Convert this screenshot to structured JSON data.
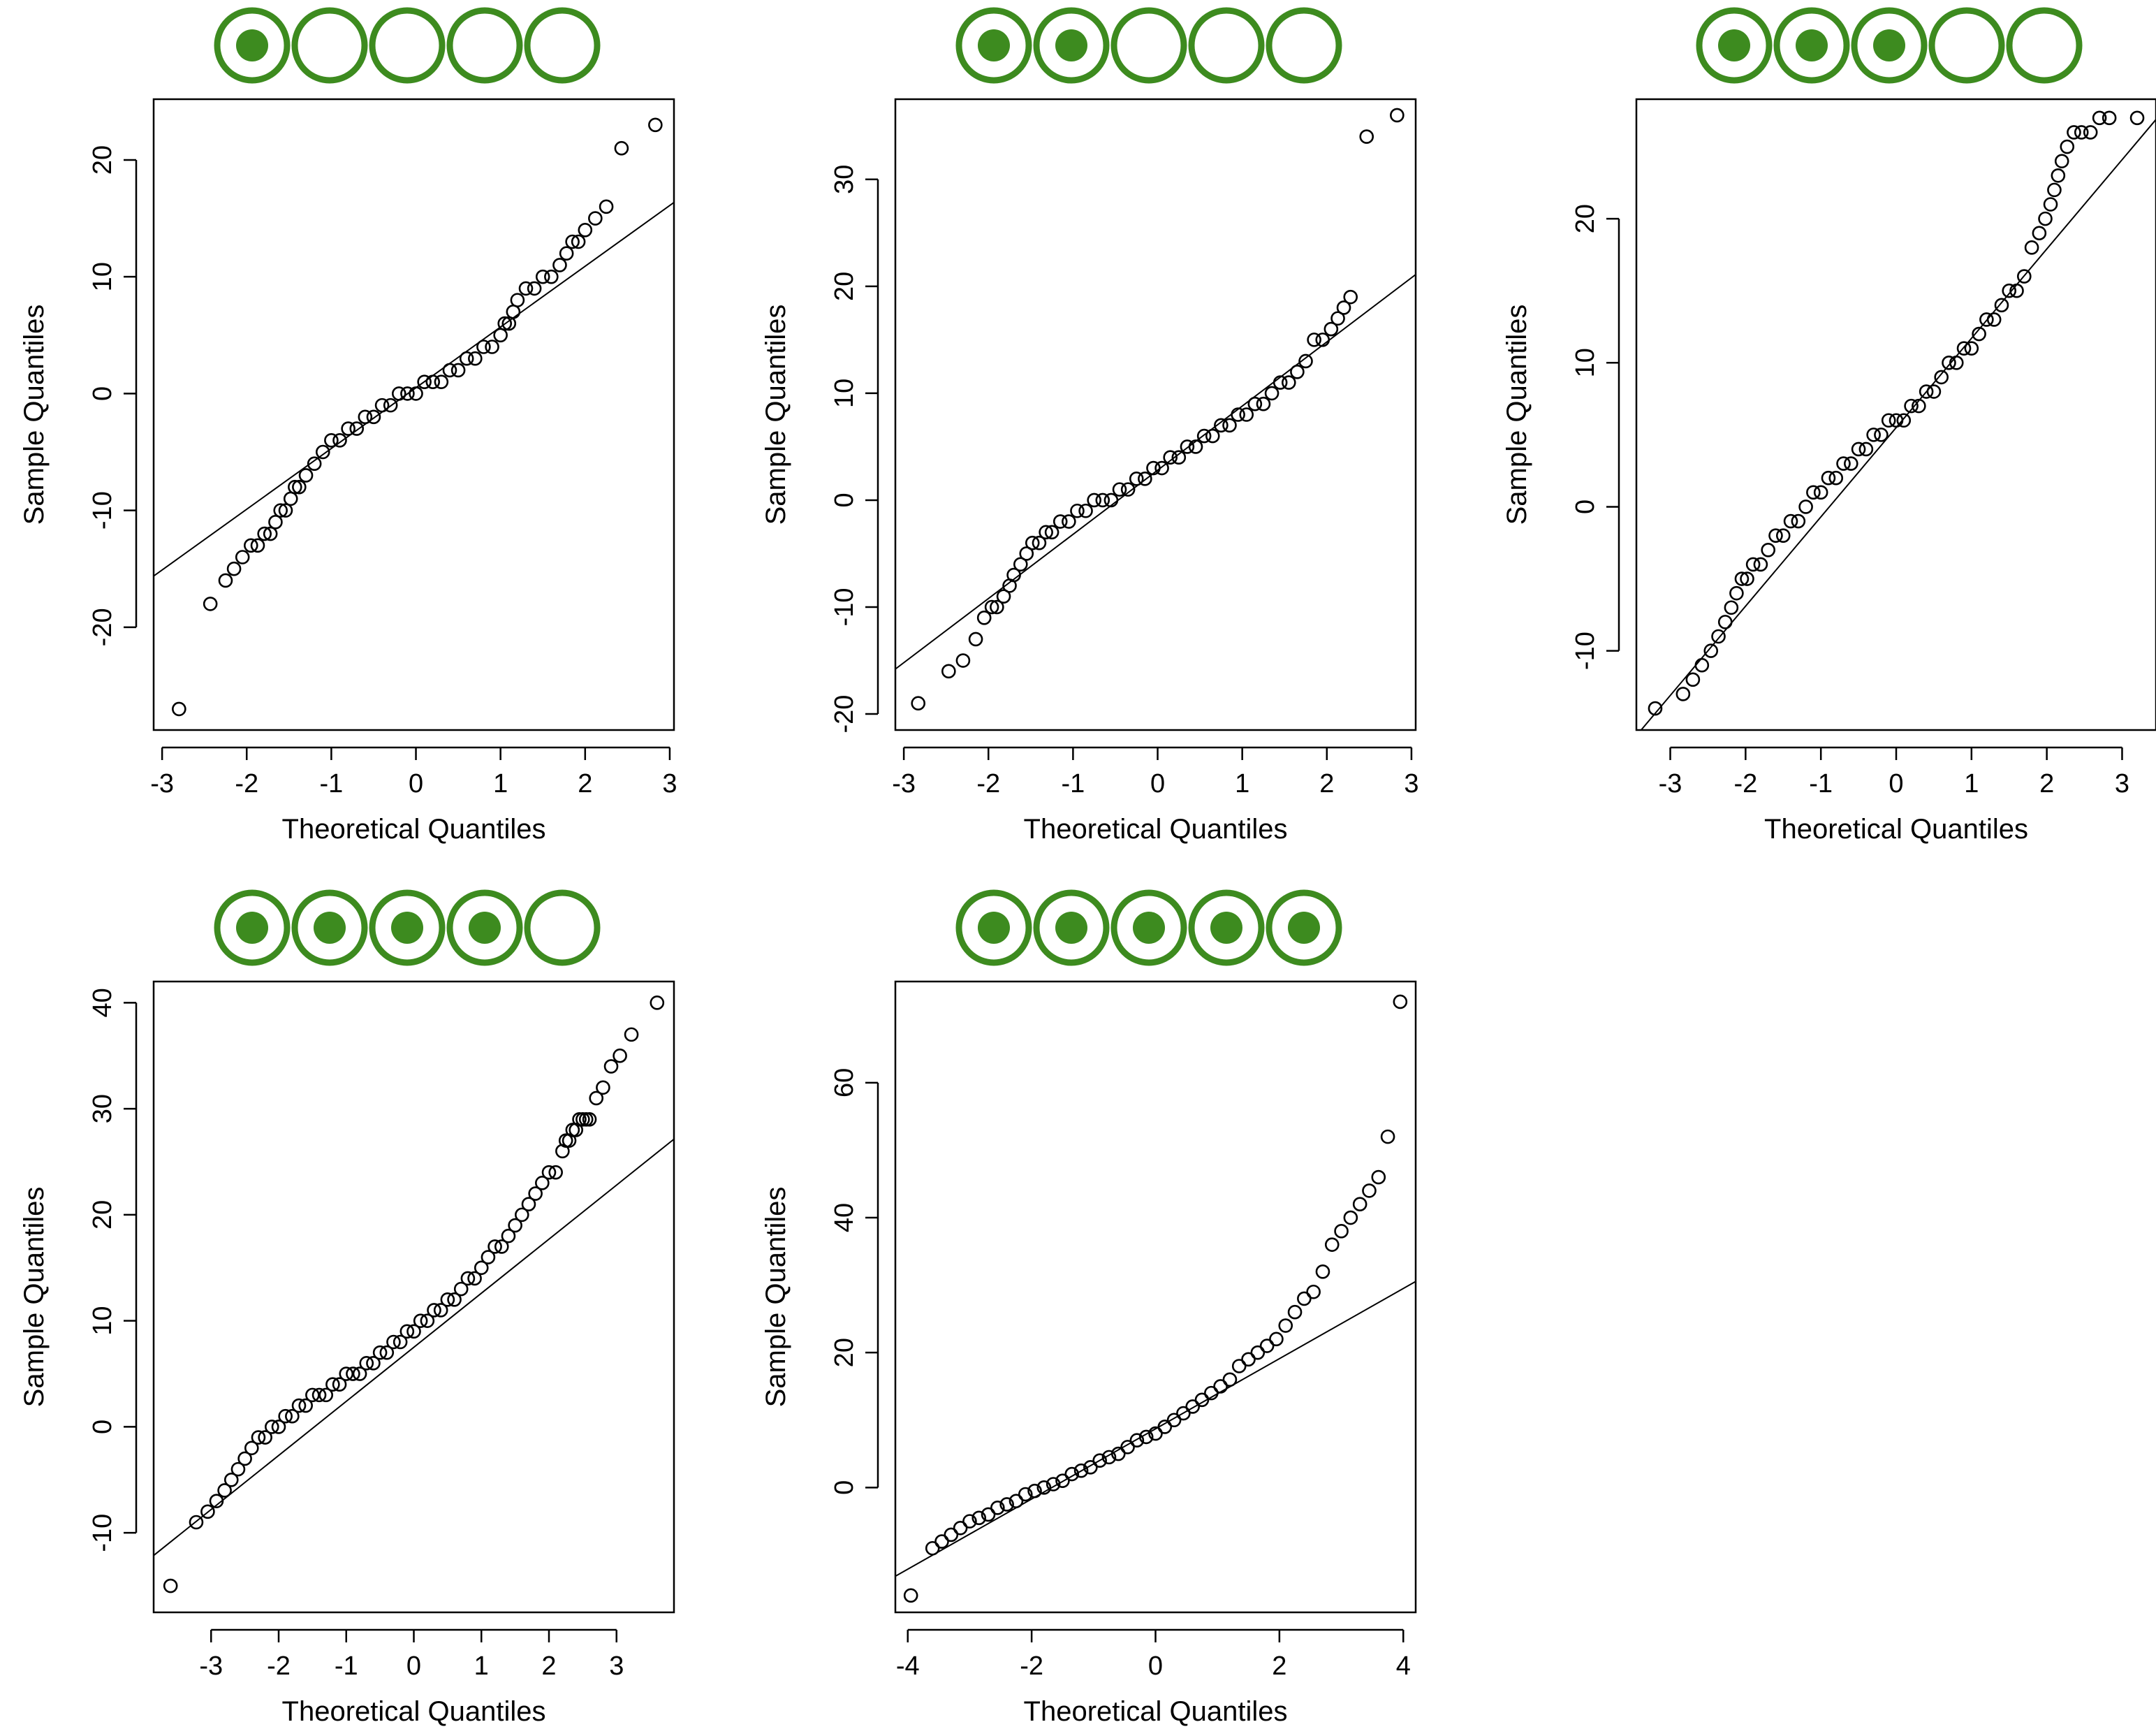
{
  "colors": {
    "rating": "#3d8b1f",
    "axis": "#000000",
    "points": "#000000",
    "background": "#ffffff"
  },
  "chart_data": [
    {
      "type": "scatter",
      "title": "",
      "rating": {
        "filled": 1,
        "total": 5
      },
      "xlabel": "Theoretical Quantiles",
      "ylabel": "Sample Quantiles",
      "xlim": [
        -3.1,
        3.05
      ],
      "ylim": [
        -28.8,
        25.2
      ],
      "xticks": [
        -3,
        -2,
        -1,
        0,
        1,
        2,
        3
      ],
      "yticks": [
        -20,
        -10,
        0,
        10,
        20
      ],
      "grid": false,
      "reference_line": {
        "intercept": 0.5,
        "slope": 5.2
      },
      "series": [
        {
          "x": [
            -2.8,
            -2.43,
            -2.25,
            -2.15,
            -2.05,
            -1.95,
            -1.87,
            -1.79,
            -1.72,
            -1.66,
            -1.6,
            -1.54,
            -1.48,
            -1.43,
            -1.38,
            -1.3,
            -1.2,
            -1.1,
            -1.0,
            -0.9,
            -0.8,
            -0.7,
            -0.6,
            -0.5,
            -0.4,
            -0.3,
            -0.2,
            -0.1,
            0.0,
            0.1,
            0.2,
            0.3,
            0.4,
            0.5,
            0.6,
            0.7,
            0.8,
            0.9,
            1.0,
            1.05,
            1.1,
            1.15,
            1.2,
            1.3,
            1.4,
            1.5,
            1.6,
            1.7,
            1.78,
            1.85,
            1.92,
            2.0,
            2.12,
            2.25,
            2.43,
            2.83
          ],
          "y": [
            -27,
            -18,
            -16,
            -15,
            -14,
            -13,
            -13,
            -12,
            -12,
            -11,
            -10,
            -10,
            -9,
            -8,
            -8,
            -7,
            -6,
            -5,
            -4,
            -4,
            -3,
            -3,
            -2,
            -2,
            -1,
            -1,
            0,
            0,
            0,
            1,
            1,
            1,
            2,
            2,
            3,
            3,
            4,
            4,
            5,
            6,
            6,
            7,
            8,
            9,
            9,
            10,
            10,
            11,
            12,
            13,
            13,
            14,
            15,
            16,
            21,
            23
          ]
        }
      ]
    },
    {
      "type": "scatter",
      "title": "",
      "rating": {
        "filled": 2,
        "total": 5
      },
      "xlabel": "Theoretical Quantiles",
      "ylabel": "Sample Quantiles",
      "xlim": [
        -3.1,
        3.05
      ],
      "ylim": [
        -21.5,
        37.5
      ],
      "xticks": [
        -3,
        -2,
        -1,
        0,
        1,
        2,
        3
      ],
      "yticks": [
        -20,
        -10,
        0,
        10,
        20,
        30
      ],
      "grid": false,
      "reference_line": {
        "intercept": 2.8,
        "slope": 6.0
      },
      "series": [
        {
          "x": [
            -2.83,
            -2.47,
            -2.3,
            -2.15,
            -2.05,
            -1.96,
            -1.9,
            -1.82,
            -1.75,
            -1.7,
            -1.62,
            -1.55,
            -1.48,
            -1.4,
            -1.32,
            -1.25,
            -1.15,
            -1.05,
            -0.95,
            -0.85,
            -0.75,
            -0.65,
            -0.55,
            -0.45,
            -0.35,
            -0.25,
            -0.15,
            -0.05,
            0.05,
            0.15,
            0.25,
            0.35,
            0.45,
            0.55,
            0.65,
            0.75,
            0.85,
            0.95,
            1.05,
            1.15,
            1.25,
            1.35,
            1.45,
            1.55,
            1.65,
            1.75,
            1.85,
            1.95,
            2.05,
            2.13,
            2.2,
            2.28,
            2.47,
            2.83
          ],
          "y": [
            -19,
            -16,
            -15,
            -13,
            -11,
            -10,
            -10,
            -9,
            -8,
            -7,
            -6,
            -5,
            -4,
            -4,
            -3,
            -3,
            -2,
            -2,
            -1,
            -1,
            0,
            0,
            0,
            1,
            1,
            2,
            2,
            3,
            3,
            4,
            4,
            5,
            5,
            6,
            6,
            7,
            7,
            8,
            8,
            9,
            9,
            10,
            11,
            11,
            12,
            13,
            15,
            15,
            16,
            17,
            18,
            19,
            34,
            36
          ]
        }
      ]
    },
    {
      "type": "scatter",
      "title": "",
      "rating": {
        "filled": 3,
        "total": 5
      },
      "xlabel": "Theoretical Quantiles",
      "ylabel": "Sample Quantiles",
      "xlim": [
        -3.45,
        3.45
      ],
      "ylim": [
        -15.5,
        28.3
      ],
      "xticks": [
        -3,
        -2,
        -1,
        0,
        1,
        2,
        3
      ],
      "yticks": [
        -10,
        0,
        10,
        20
      ],
      "grid": false,
      "reference_line": {
        "intercept": 5.5,
        "slope": 6.2
      },
      "series": [
        {
          "x": [
            -3.2,
            -2.83,
            -2.7,
            -2.58,
            -2.46,
            -2.36,
            -2.27,
            -2.19,
            -2.12,
            -2.05,
            -1.98,
            -1.9,
            -1.8,
            -1.7,
            -1.6,
            -1.5,
            -1.4,
            -1.3,
            -1.2,
            -1.1,
            -1.0,
            -0.9,
            -0.8,
            -0.7,
            -0.6,
            -0.5,
            -0.4,
            -0.3,
            -0.2,
            -0.1,
            0.0,
            0.1,
            0.2,
            0.3,
            0.4,
            0.5,
            0.6,
            0.7,
            0.8,
            0.9,
            1.0,
            1.1,
            1.2,
            1.3,
            1.4,
            1.5,
            1.6,
            1.7,
            1.8,
            1.9,
            1.98,
            2.05,
            2.1,
            2.15,
            2.2,
            2.27,
            2.36,
            2.46,
            2.58,
            2.7,
            2.83,
            3.2
          ],
          "y": [
            -14,
            -13,
            -12,
            -11,
            -10,
            -9,
            -8,
            -7,
            -6,
            -5,
            -5,
            -4,
            -4,
            -3,
            -2,
            -2,
            -1,
            -1,
            0,
            1,
            1,
            2,
            2,
            3,
            3,
            4,
            4,
            5,
            5,
            6,
            6,
            6,
            7,
            7,
            8,
            8,
            9,
            10,
            10,
            11,
            11,
            12,
            13,
            13,
            14,
            15,
            15,
            16,
            18,
            19,
            20,
            21,
            22,
            23,
            24,
            25,
            26,
            26,
            26,
            27,
            27,
            27
          ]
        }
      ]
    },
    {
      "type": "scatter",
      "title": "",
      "rating": {
        "filled": 4,
        "total": 5
      },
      "xlabel": "Theoretical Quantiles",
      "ylabel": "Sample Quantiles",
      "xlim": [
        -3.85,
        3.85
      ],
      "ylim": [
        -17.5,
        42.0
      ],
      "xticks": [
        -3,
        -2,
        -1,
        0,
        1,
        2,
        3
      ],
      "yticks": [
        -10,
        0,
        10,
        20,
        30,
        40
      ],
      "grid": false,
      "reference_line": {
        "intercept": 7.5,
        "slope": 5.1
      },
      "series": [
        {
          "x": [
            -3.6,
            -3.22,
            -3.05,
            -2.92,
            -2.8,
            -2.7,
            -2.6,
            -2.5,
            -2.4,
            -2.3,
            -2.2,
            -2.1,
            -2.0,
            -1.9,
            -1.8,
            -1.7,
            -1.6,
            -1.5,
            -1.4,
            -1.3,
            -1.2,
            -1.1,
            -1.0,
            -0.9,
            -0.8,
            -0.7,
            -0.6,
            -0.5,
            -0.4,
            -0.3,
            -0.2,
            -0.1,
            0.0,
            0.1,
            0.2,
            0.3,
            0.4,
            0.5,
            0.6,
            0.7,
            0.8,
            0.9,
            1.0,
            1.1,
            1.2,
            1.3,
            1.4,
            1.5,
            1.6,
            1.7,
            1.8,
            1.9,
            2.0,
            2.1,
            2.2,
            2.25,
            2.3,
            2.35,
            2.4,
            2.45,
            2.5,
            2.55,
            2.6,
            2.7,
            2.8,
            2.92,
            3.05,
            3.22,
            3.6
          ],
          "y": [
            -15,
            -9,
            -8,
            -7,
            -6,
            -5,
            -4,
            -3,
            -2,
            -1,
            -1,
            0,
            0,
            1,
            1,
            2,
            2,
            3,
            3,
            3,
            4,
            4,
            5,
            5,
            5,
            6,
            6,
            7,
            7,
            8,
            8,
            9,
            9,
            10,
            10,
            11,
            11,
            12,
            12,
            13,
            14,
            14,
            15,
            16,
            17,
            17,
            18,
            19,
            20,
            21,
            22,
            23,
            24,
            24,
            26,
            27,
            27,
            28,
            28,
            29,
            29,
            29,
            29,
            31,
            32,
            34,
            35,
            37,
            40
          ]
        }
      ]
    },
    {
      "type": "scatter",
      "title": "",
      "rating": {
        "filled": 5,
        "total": 5
      },
      "xlabel": "Theoretical Quantiles",
      "ylabel": "Sample Quantiles",
      "xlim": [
        -4.2,
        4.2
      ],
      "ylim": [
        -18.5,
        75.0
      ],
      "xticks": [
        -4,
        -2,
        0,
        2,
        4
      ],
      "yticks": [
        0,
        20,
        40,
        60
      ],
      "grid": false,
      "reference_line": {
        "intercept": 8.7,
        "slope": 5.2
      },
      "series": [
        {
          "x": [
            -3.95,
            -3.6,
            -3.45,
            -3.3,
            -3.15,
            -3.0,
            -2.85,
            -2.7,
            -2.55,
            -2.4,
            -2.25,
            -2.1,
            -1.95,
            -1.8,
            -1.65,
            -1.5,
            -1.35,
            -1.2,
            -1.05,
            -0.9,
            -0.75,
            -0.6,
            -0.45,
            -0.3,
            -0.15,
            0.0,
            0.15,
            0.3,
            0.45,
            0.6,
            0.75,
            0.9,
            1.05,
            1.2,
            1.35,
            1.5,
            1.65,
            1.8,
            1.95,
            2.1,
            2.25,
            2.4,
            2.55,
            2.7,
            2.85,
            3.0,
            3.15,
            3.3,
            3.45,
            3.6,
            3.75,
            3.95
          ],
          "y": [
            -16,
            -9,
            -8,
            -7,
            -6,
            -5,
            -4.5,
            -4,
            -3,
            -2.5,
            -2,
            -1,
            -0.5,
            0,
            0.5,
            1,
            2,
            2.5,
            3,
            4,
            4.5,
            5,
            6,
            7,
            7.5,
            8,
            9,
            10,
            11,
            12,
            13,
            14,
            15,
            16,
            18,
            19,
            20,
            21,
            22,
            24,
            26,
            28,
            29,
            32,
            36,
            38,
            40,
            42,
            44,
            46,
            52,
            72
          ]
        }
      ]
    }
  ]
}
